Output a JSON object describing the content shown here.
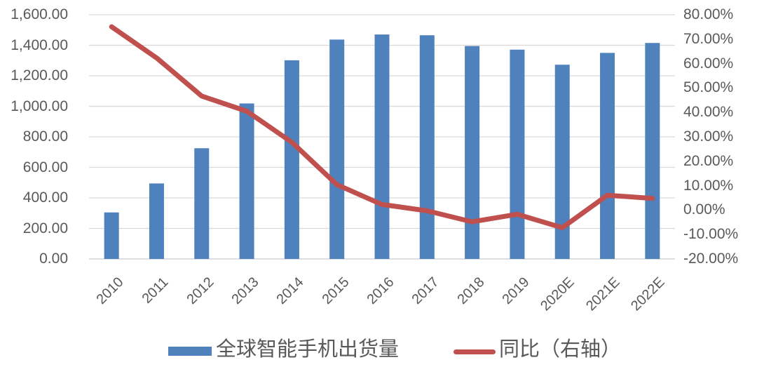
{
  "chart_data": {
    "type": "combo",
    "title": "",
    "categories": [
      "2010",
      "2011",
      "2012",
      "2013",
      "2014",
      "2015",
      "2016",
      "2017",
      "2018",
      "2019",
      "2020E",
      "2021E",
      "2022E"
    ],
    "series": [
      {
        "name": "全球智能手机出货量",
        "type": "bar",
        "axis": "left",
        "color": "#4F81BD",
        "values": [
          304.7,
          494.6,
          725.3,
          1018.7,
          1301.7,
          1437.2,
          1470.6,
          1465.5,
          1395.0,
          1371.1,
          1272.5,
          1350.0,
          1415.0
        ]
      },
      {
        "name": "同比（右轴）",
        "type": "line",
        "axis": "right",
        "color": "#C0504D",
        "values": [
          75.1,
          62.3,
          46.7,
          40.5,
          27.8,
          10.4,
          2.3,
          -0.3,
          -4.8,
          -1.7,
          -7.2,
          6.1,
          4.8
        ]
      }
    ],
    "left_axis": {
      "min": 0,
      "max": 1600,
      "step": 200,
      "tick_labels": [
        "0.00",
        "200.00",
        "400.00",
        "600.00",
        "800.00",
        "1,000.00",
        "1,200.00",
        "1,400.00",
        "1,600.00"
      ]
    },
    "right_axis": {
      "min": -20,
      "max": 80,
      "step": 10,
      "tick_labels": [
        "80.00%",
        "70.00%",
        "60.00%",
        "50.00%",
        "40.00%",
        "30.00%",
        "20.00%",
        "10.00%",
        "0.00%",
        "-10.00%",
        "-20.00%"
      ]
    },
    "grid": true,
    "legend_position": "bottom"
  },
  "colors": {
    "bar": "#4F81BD",
    "line": "#C0504D",
    "gridline": "#D9D9D9",
    "axis_line": "#C9C9C9",
    "text": "#595959",
    "background": "#FFFFFF"
  }
}
